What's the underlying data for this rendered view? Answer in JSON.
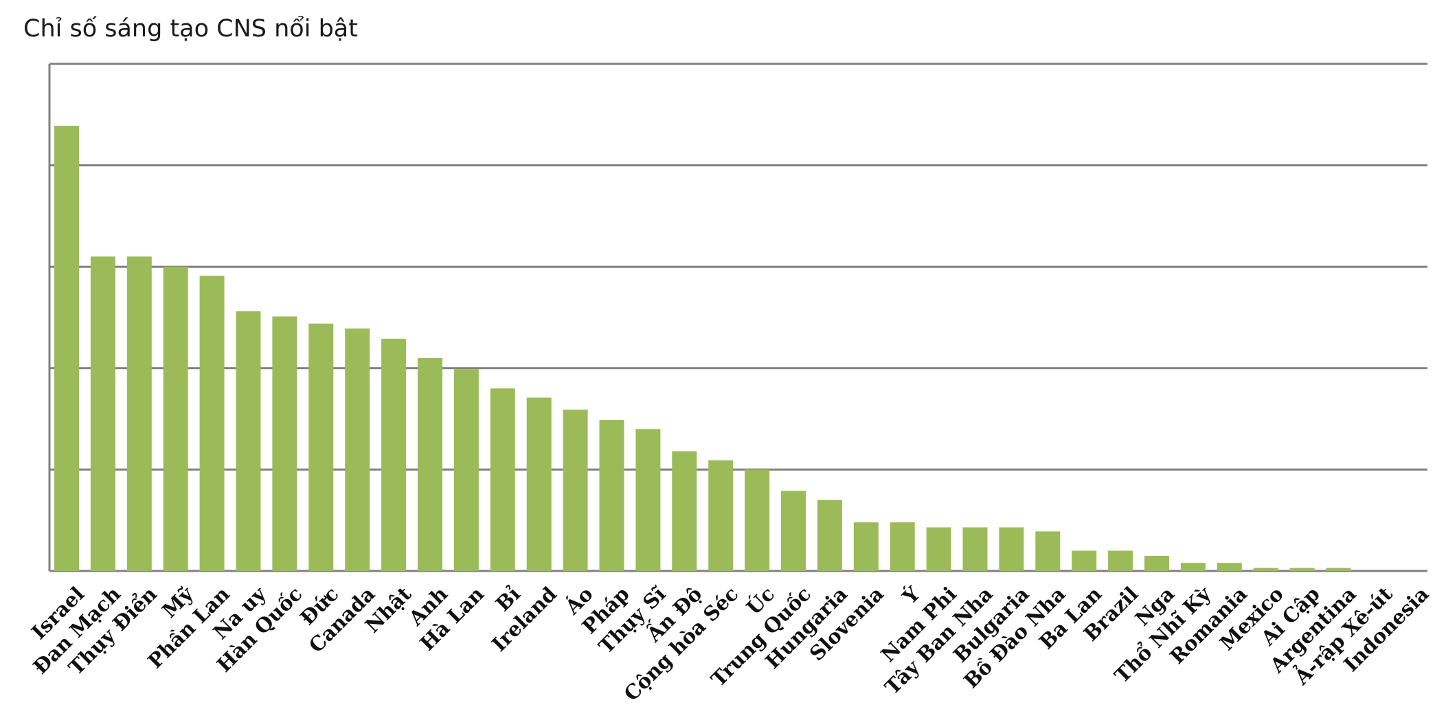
{
  "chart_data": {
    "type": "bar",
    "title": "Chỉ số sáng tạo CNS nổi bật",
    "xlabel": "",
    "ylabel": "",
    "ylim": [
      0,
      5
    ],
    "grid": true,
    "y_ticks_labeled": false,
    "bar_color": "#9bbb59",
    "grid_color": "#808080",
    "categories": [
      "Israel",
      "Đan Mạch",
      "Thụy Điển",
      "Mỹ",
      "Phần Lan",
      "Na uy",
      "Hàn Quốc",
      "Đức",
      "Canada",
      "Nhật",
      "Anh",
      "Hà Lan",
      "Bỉ",
      "Ireland",
      "Áo",
      "Pháp",
      "Thụy Sĩ",
      "Ấn Độ",
      "Cộng hòa Séc",
      "Úc",
      "Trung Quốc",
      "Hungaria",
      "Slovenia",
      "Ý",
      "Nam Phi",
      "Tây Ban Nha",
      "Bulgaria",
      "Bồ Đào Nha",
      "Ba Lan",
      "Brazil",
      "Nga",
      "Thổ Nhĩ Kỳ",
      "Romania",
      "Mexico",
      "Ai Cập",
      "Argentina",
      "Ả-rập Xê-út",
      "Indonesia"
    ],
    "values": [
      4.39,
      3.1,
      3.1,
      3.0,
      2.91,
      2.56,
      2.51,
      2.44,
      2.39,
      2.29,
      2.1,
      1.99,
      1.8,
      1.71,
      1.59,
      1.49,
      1.4,
      1.18,
      1.09,
      1.0,
      0.79,
      0.7,
      0.48,
      0.48,
      0.43,
      0.43,
      0.43,
      0.39,
      0.2,
      0.2,
      0.15,
      0.08,
      0.08,
      0.03,
      0.03,
      0.03,
      0.0,
      0.0
    ]
  }
}
